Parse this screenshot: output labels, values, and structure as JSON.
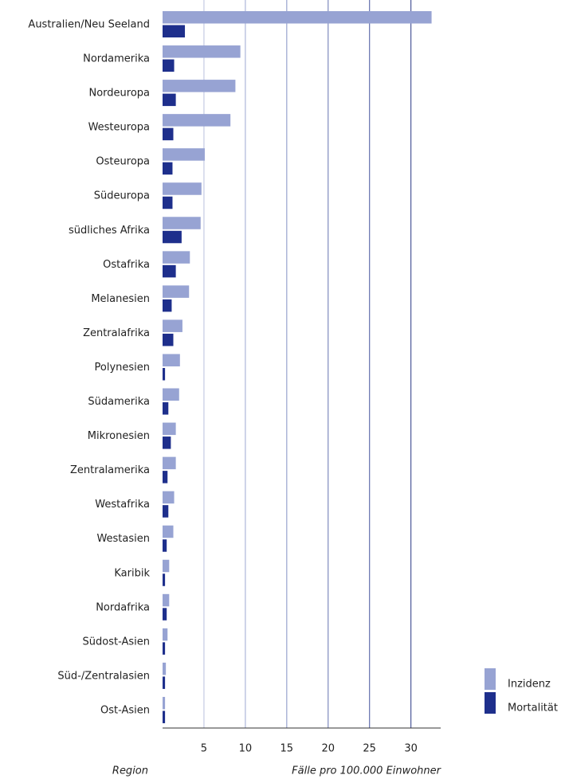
{
  "chart_data": {
    "type": "bar",
    "orientation": "horizontal",
    "y_label": "Region",
    "x_label": "Fälle pro 100.000 Einwohner",
    "categories": [
      "Australien/Neu Seeland",
      "Nordamerika",
      "Nordeuropa",
      "Westeuropa",
      "Osteuropa",
      "Südeuropa",
      "südliches Afrika",
      "Ostafrika",
      "Melanesien",
      "Zentralafrika",
      "Polynesien",
      "Südamerika",
      "Mikronesien",
      "Zentralamerika",
      "Westafrika",
      "Westasien",
      "Karibik",
      "Nordafrika",
      "Südost-Asien",
      "Süd-/Zentralasien",
      "Ost-Asien"
    ],
    "series": [
      {
        "name": "Inzidenz",
        "color": "#97a3d3",
        "values": [
          32.5,
          9.4,
          8.8,
          8.2,
          5.1,
          4.7,
          4.6,
          3.3,
          3.2,
          2.4,
          2.1,
          2.0,
          1.6,
          1.6,
          1.4,
          1.3,
          0.8,
          0.8,
          0.6,
          0.4,
          0.3
        ]
      },
      {
        "name": "Mortalität",
        "color": "#1e2f8c",
        "values": [
          2.7,
          1.4,
          1.6,
          1.3,
          1.2,
          1.2,
          2.3,
          1.6,
          1.1,
          1.3,
          0.3,
          0.7,
          1.0,
          0.6,
          0.7,
          0.5,
          0.3,
          0.5,
          0.3,
          0.3,
          0.3
        ]
      }
    ],
    "xlim": [
      0,
      33.6
    ],
    "xticks": [
      5,
      10,
      15,
      20,
      25,
      30
    ],
    "grid": true,
    "legend": "bottom-right"
  }
}
